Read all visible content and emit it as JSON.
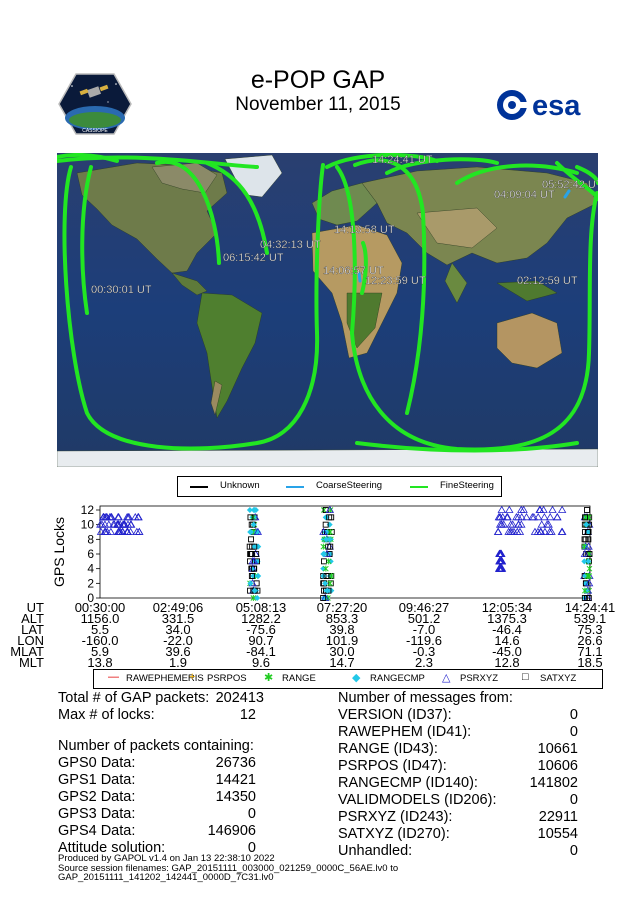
{
  "header": {
    "title": "e-POP GAP",
    "date": "November 11, 2015",
    "logo_left_text": "CASSIOPE",
    "logo_right_text": "esa"
  },
  "map": {
    "time_labels": [
      "14:24:41 UT",
      "05:52:42 UT",
      "04:09:04 UT",
      "04:32:13 UT",
      "14:13:58 UT",
      "06:15:42 UT",
      "14:06:57 UT",
      "12:23:59 UT",
      "02:12:59 UT",
      "00:30:01 UT"
    ],
    "track_color": "#22e622"
  },
  "steering_legend": [
    {
      "label": "Unknown",
      "color": "#000000"
    },
    {
      "label": "CoarseSteering",
      "color": "#29a3e8"
    },
    {
      "label": "FineSteering",
      "color": "#22e622"
    }
  ],
  "chart_data": {
    "type": "scatter",
    "ylabel": "GPS Locks",
    "ylim": [
      0,
      12
    ],
    "yticks": [
      "0",
      "2",
      "4",
      "6",
      "8",
      "10",
      "12"
    ],
    "x_ticks": [
      "00:30:00",
      "02:49:06",
      "05:08:13",
      "07:27:20",
      "09:46:27",
      "12:05:34",
      "14:24:41"
    ],
    "series": [
      {
        "name": "RAWEPHEMERIS",
        "color": "#e00000",
        "marker": "dash"
      },
      {
        "name": "PSRPOS",
        "color": "#f0b000",
        "marker": "plus"
      },
      {
        "name": "RANGE",
        "color": "#22cc22",
        "marker": "star"
      },
      {
        "name": "RANGECMP",
        "color": "#22c8e8",
        "marker": "diamond"
      },
      {
        "name": "PSRXYZ",
        "color": "#2222cc",
        "marker": "triangle"
      },
      {
        "name": "SATXYZ",
        "color": "#000000",
        "marker": "square"
      }
    ],
    "clusters": [
      {
        "x_range": [
          "00:30",
          "01:40"
        ],
        "y_range": [
          8.5,
          11.5
        ],
        "series": "PSRXYZ"
      },
      {
        "x_range": [
          "04:45",
          "05:00"
        ],
        "y_range": [
          0,
          12
        ],
        "series": "mixed"
      },
      {
        "x_range": [
          "06:50",
          "07:05"
        ],
        "y_range": [
          0,
          12
        ],
        "series": "mixed"
      },
      {
        "x_range": [
          "11:40",
          "13:40"
        ],
        "y_range": [
          9,
          12
        ],
        "series": "PSRXYZ"
      },
      {
        "x_range": [
          "11:50",
          "11:55"
        ],
        "y_range": [
          3.5,
          6
        ],
        "series": "PSRXYZ"
      },
      {
        "x_range": [
          "14:15",
          "14:24"
        ],
        "y_range": [
          0,
          12
        ],
        "series": "mixed"
      }
    ]
  },
  "ephemeris_table": {
    "rows": [
      {
        "label": "UT",
        "values": [
          "00:30:00",
          "02:49:06",
          "05:08:13",
          "07:27:20",
          "09:46:27",
          "12:05:34",
          "14:24:41"
        ]
      },
      {
        "label": "ALT",
        "values": [
          "1156.0",
          "331.5",
          "1282.2",
          "853.3",
          "501.2",
          "1375.3",
          "539.1"
        ]
      },
      {
        "label": "LAT",
        "values": [
          "5.5",
          "34.0",
          "-75.6",
          "39.8",
          "-7.0",
          "-46.4",
          "75.3"
        ]
      },
      {
        "label": "LON",
        "values": [
          "-160.0",
          "-22.0",
          "90.7",
          "101.9",
          "-119.6",
          "14.6",
          "26.6"
        ]
      },
      {
        "label": "MLAT",
        "values": [
          "5.9",
          "39.6",
          "-84.1",
          "30.0",
          "-0.3",
          "-45.0",
          "71.1"
        ]
      },
      {
        "label": "MLT",
        "values": [
          "13.8",
          "1.9",
          "9.6",
          "14.7",
          "2.3",
          "12.8",
          "18.5"
        ]
      }
    ]
  },
  "stats_left": {
    "total_label": "Total # of GAP packets:",
    "total_value": "202413",
    "max_label": "Max # of locks:",
    "max_value": "12",
    "contain_header": "Number of packets containing:",
    "items": [
      {
        "label": "GPS0 Data:",
        "value": "26736"
      },
      {
        "label": "GPS1 Data:",
        "value": "14421"
      },
      {
        "label": "GPS2 Data:",
        "value": "14350"
      },
      {
        "label": "GPS3 Data:",
        "value": "0"
      },
      {
        "label": "GPS4 Data:",
        "value": "146906"
      },
      {
        "label": "Attitude solution:",
        "value": "0"
      }
    ]
  },
  "stats_right": {
    "header": "Number of messages from:",
    "items": [
      {
        "label": "VERSION (ID37):",
        "value": "0"
      },
      {
        "label": "RAWEPHEM (ID41):",
        "value": "0"
      },
      {
        "label": "RANGE (ID43):",
        "value": "10661"
      },
      {
        "label": "PSRPOS (ID47):",
        "value": "10606"
      },
      {
        "label": "RANGECMP (ID140):",
        "value": "141802"
      },
      {
        "label": "VALIDMODELS (ID206):",
        "value": "0"
      },
      {
        "label": "PSRXYZ (ID243):",
        "value": "22911"
      },
      {
        "label": "SATXYZ (ID270):",
        "value": "10554"
      },
      {
        "label": "Unhandled:",
        "value": "0"
      }
    ]
  },
  "footer": {
    "line1": "Produced by GAPOL v1.4 on Jan 13 22:38:10 2022",
    "line2": "Source session filenames: GAP_20151111_003000_021259_0000C_56AE.lv0 to",
    "line3": "GAP_20151111_141202_142441_0000D_7C31.lv0"
  }
}
